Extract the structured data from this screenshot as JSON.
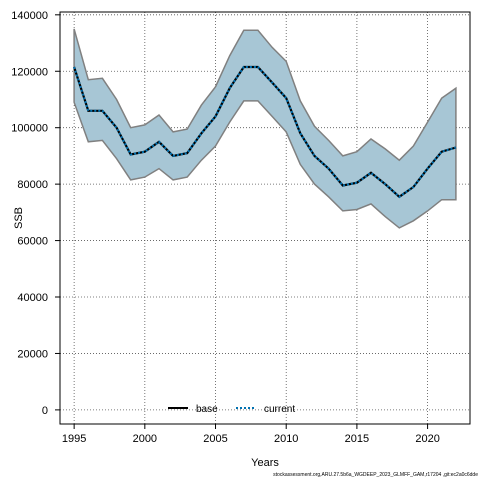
{
  "chart_data": {
    "type": "line",
    "title": "",
    "xlabel": "Years",
    "ylabel": "SSB",
    "xlim": [
      1994,
      2023
    ],
    "ylim": [
      -5000,
      141000
    ],
    "grid": true,
    "x_ticks": [
      1995,
      2000,
      2005,
      2010,
      2015,
      2020
    ],
    "y_ticks": [
      0,
      20000,
      40000,
      60000,
      80000,
      100000,
      120000,
      140000
    ],
    "x": [
      1995,
      1996,
      1997,
      1998,
      1999,
      2000,
      2001,
      2002,
      2003,
      2004,
      2005,
      2006,
      2007,
      2008,
      2009,
      2010,
      2011,
      2012,
      2013,
      2014,
      2015,
      2016,
      2017,
      2018,
      2019,
      2020,
      2021,
      2022
    ],
    "band": {
      "upper": [
        135000,
        117000,
        117500,
        110000,
        100000,
        101000,
        104500,
        98500,
        99500,
        108000,
        114500,
        125500,
        134500,
        134500,
        128500,
        123500,
        109500,
        100500,
        95500,
        90000,
        91500,
        96000,
        92500,
        88500,
        93500,
        102000,
        110500,
        114000
      ],
      "lower": [
        109000,
        95000,
        95500,
        89000,
        81500,
        82500,
        85500,
        81500,
        82500,
        88500,
        93500,
        102000,
        109500,
        109500,
        104000,
        98500,
        87000,
        80000,
        75500,
        70500,
        71000,
        73000,
        68500,
        64500,
        67000,
        70500,
        74500,
        74500
      ]
    },
    "series": [
      {
        "name": "base",
        "values": [
          121500,
          106000,
          106000,
          100000,
          90500,
          91500,
          95000,
          90000,
          91000,
          98000,
          104000,
          114000,
          121500,
          121500,
          116000,
          110500,
          98000,
          90000,
          85500,
          79500,
          80500,
          84000,
          80000,
          75500,
          79000,
          85500,
          91500,
          93000
        ],
        "color": "#000000",
        "dash": "solid"
      },
      {
        "name": "current",
        "values": [
          121500,
          106000,
          106000,
          100000,
          90500,
          91500,
          95000,
          90000,
          91000,
          98000,
          104000,
          114000,
          121500,
          121500,
          116000,
          110500,
          98000,
          90000,
          85500,
          79500,
          80500,
          84000,
          80000,
          75500,
          79000,
          85500,
          91500,
          93000
        ],
        "color": "#0072b2",
        "dash": "dotted"
      }
    ],
    "band_color": "#a7c6d5",
    "band_edge_color": "#808080",
    "legend_placement": "bottom-center"
  },
  "footer": "stockassessment.org,ARU.27.5b6a_WGDEEP_2023_GLMFF_GAM,r17204 ,git:ec2a0c6dde"
}
